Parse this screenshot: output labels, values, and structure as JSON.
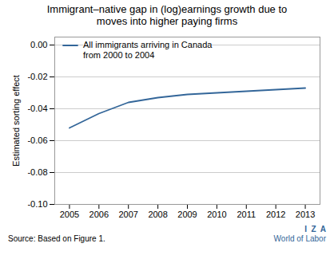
{
  "chart_data": {
    "type": "line",
    "title": "Immigrant–native gap in (log)earnings growth due to\nmoves into higher paying firms",
    "y_label": "Estimated sorting effect",
    "x": [
      2005,
      2006,
      2007,
      2008,
      2009,
      2010,
      2011,
      2012,
      2013
    ],
    "series": [
      {
        "name": "All immigrants arriving in Canada\nfrom 2000 to 2004",
        "color": "#336699",
        "values": [
          -0.052,
          -0.043,
          -0.036,
          -0.033,
          -0.031,
          -0.03,
          -0.029,
          -0.028,
          -0.027
        ]
      }
    ],
    "xlim": [
      2004.5,
      2013.5
    ],
    "xticks": [
      2005,
      2006,
      2007,
      2008,
      2009,
      2010,
      2011,
      2012,
      2013
    ],
    "ylim": [
      -0.1,
      0.005
    ],
    "yticks": [
      {
        "value": 0.0,
        "label": "0.00"
      },
      -0.02,
      -0.04,
      -0.06,
      -0.08,
      {
        "value": -0.1,
        "label": "-0.10"
      }
    ],
    "grid": "y",
    "legend": "upper left",
    "annotations": [
      "Source: Based on Figure 1.",
      "I  Z  A",
      "World of Labor"
    ]
  }
}
